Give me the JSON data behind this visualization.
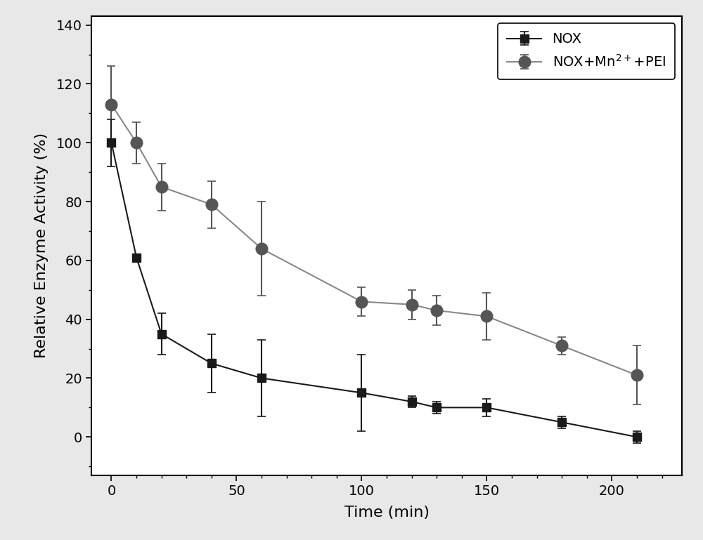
{
  "nox_x": [
    0,
    10,
    20,
    40,
    60,
    100,
    120,
    130,
    150,
    180,
    210
  ],
  "nox_y": [
    100,
    61,
    35,
    25,
    20,
    15,
    12,
    10,
    10,
    5,
    0
  ],
  "nox_yerr": [
    8,
    0,
    7,
    10,
    13,
    13,
    2,
    2,
    3,
    2,
    2
  ],
  "nox_mn_pei_x": [
    0,
    10,
    20,
    40,
    60,
    100,
    120,
    130,
    150,
    180,
    210
  ],
  "nox_mn_pei_y": [
    113,
    100,
    85,
    79,
    64,
    46,
    45,
    43,
    41,
    31,
    21
  ],
  "nox_mn_pei_yerr": [
    13,
    7,
    8,
    8,
    16,
    5,
    5,
    5,
    8,
    3,
    10
  ],
  "nox_color": "#1a1a1a",
  "nox_mn_pei_color": "#555555",
  "line_color_nox": "#1a1a1a",
  "line_color_mn": "#888888",
  "xlabel": "Time (min)",
  "ylabel": "Relative Enzyme Activity (%)",
  "legend_nox": "NOX",
  "legend_mn": "NOX+Mn$^{2+}$+PEI",
  "xlim": [
    -8,
    228
  ],
  "ylim": [
    -13,
    143
  ],
  "xticks": [
    0,
    50,
    100,
    150,
    200
  ],
  "yticks": [
    0,
    20,
    40,
    60,
    80,
    100,
    120,
    140
  ],
  "fig_bg_color": "#e8e8e8",
  "plot_bg_color": "#ffffff",
  "figwidth": 10.0,
  "figheight": 7.69,
  "dpi": 100
}
